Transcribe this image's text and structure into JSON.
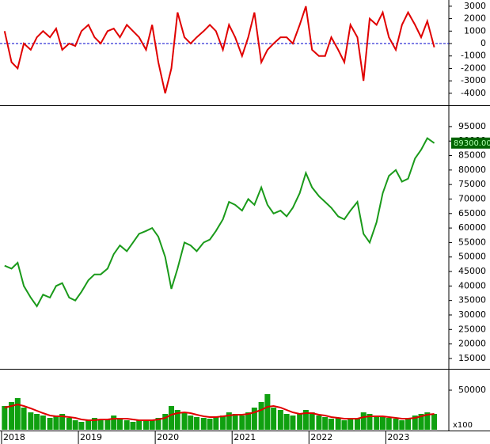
{
  "chart_data": [
    {
      "type": "line",
      "xlim": [
        2017.98,
        2023.82
      ],
      "ylim": [
        -4900,
        3500
      ],
      "yticks": [
        -4000,
        -3000,
        -2000,
        -1000,
        0,
        1000,
        2000,
        3000
      ],
      "hline": 0,
      "hline_color": "#0000cc",
      "x": [
        2018.04,
        2018.13,
        2018.21,
        2018.29,
        2018.38,
        2018.46,
        2018.54,
        2018.63,
        2018.71,
        2018.79,
        2018.88,
        2018.96,
        2019.04,
        2019.13,
        2019.21,
        2019.29,
        2019.38,
        2019.46,
        2019.54,
        2019.63,
        2019.71,
        2019.79,
        2019.88,
        2019.96,
        2020.04,
        2020.13,
        2020.21,
        2020.29,
        2020.38,
        2020.46,
        2020.54,
        2020.63,
        2020.71,
        2020.79,
        2020.88,
        2020.96,
        2021.04,
        2021.13,
        2021.21,
        2021.29,
        2021.38,
        2021.46,
        2021.54,
        2021.63,
        2021.71,
        2021.79,
        2021.88,
        2021.96,
        2022.04,
        2022.13,
        2022.21,
        2022.29,
        2022.38,
        2022.46,
        2022.54,
        2022.63,
        2022.71,
        2022.79,
        2022.88,
        2022.96,
        2023.04,
        2023.13,
        2023.21,
        2023.29,
        2023.38,
        2023.46,
        2023.54,
        2023.63
      ],
      "series": [
        {
          "color": "#e00000",
          "values": [
            1000,
            -1500,
            -2000,
            0,
            -500,
            500,
            1000,
            500,
            1200,
            -500,
            0,
            -200,
            1000,
            1500,
            500,
            0,
            1000,
            1200,
            500,
            1500,
            1000,
            500,
            -500,
            1500,
            -1500,
            -4000,
            -2000,
            2500,
            500,
            0,
            500,
            1000,
            1500,
            1000,
            -500,
            1500,
            500,
            -1000,
            500,
            2500,
            -1500,
            -500,
            0,
            500,
            500,
            0,
            1500,
            3000,
            -500,
            -1000,
            -1000,
            500,
            -500,
            -1500,
            1500,
            500,
            -3000,
            2000,
            1500,
            2500,
            500,
            -500,
            1500,
            2500,
            1500,
            500,
            1800,
            -300
          ]
        }
      ]
    },
    {
      "type": "line",
      "xlim": [
        2017.98,
        2023.82
      ],
      "ylim": [
        11700,
        101800
      ],
      "yticks": [
        15000,
        20000,
        25000,
        30000,
        35000,
        40000,
        45000,
        50000,
        55000,
        60000,
        65000,
        70000,
        75000,
        80000,
        85000,
        90000,
        95000
      ],
      "last_price": {
        "value": 89300,
        "label": "89300.00"
      },
      "x": [
        2018.04,
        2018.13,
        2018.21,
        2018.29,
        2018.38,
        2018.46,
        2018.54,
        2018.63,
        2018.71,
        2018.79,
        2018.88,
        2018.96,
        2019.04,
        2019.13,
        2019.21,
        2019.29,
        2019.38,
        2019.46,
        2019.54,
        2019.63,
        2019.71,
        2019.79,
        2019.88,
        2019.96,
        2020.04,
        2020.13,
        2020.21,
        2020.29,
        2020.38,
        2020.46,
        2020.54,
        2020.63,
        2020.71,
        2020.79,
        2020.88,
        2020.96,
        2021.04,
        2021.13,
        2021.21,
        2021.29,
        2021.38,
        2021.46,
        2021.54,
        2021.63,
        2021.71,
        2021.79,
        2021.88,
        2021.96,
        2022.04,
        2022.13,
        2022.21,
        2022.29,
        2022.38,
        2022.46,
        2022.54,
        2022.63,
        2022.71,
        2022.79,
        2022.88,
        2022.96,
        2023.04,
        2023.13,
        2023.21,
        2023.29,
        2023.38,
        2023.46,
        2023.54,
        2023.63
      ],
      "series": [
        {
          "color": "#1a9a1a",
          "values": [
            47000,
            46000,
            48000,
            40000,
            36000,
            33000,
            37000,
            36000,
            40000,
            41000,
            36000,
            35000,
            38000,
            42000,
            44000,
            44000,
            46000,
            51000,
            54000,
            52000,
            55000,
            58000,
            59000,
            60000,
            57000,
            50000,
            39000,
            46000,
            55000,
            54000,
            52000,
            55000,
            56000,
            59000,
            63000,
            69000,
            68000,
            66000,
            70000,
            68000,
            74000,
            68000,
            65000,
            66000,
            64000,
            67000,
            72000,
            79000,
            74000,
            71000,
            69000,
            67000,
            64000,
            63000,
            66000,
            69000,
            58000,
            55000,
            62000,
            72000,
            78000,
            80000,
            76000,
            77000,
            84000,
            87000,
            91000,
            89300
          ]
        }
      ]
    },
    {
      "type": "bar",
      "xlim": [
        2017.98,
        2023.82
      ],
      "ylim": [
        0,
        76000
      ],
      "yticks": [
        50000
      ],
      "unit_label": "x100",
      "xticks": [
        2018,
        2019,
        2020,
        2021,
        2022,
        2023
      ],
      "x": [
        2018.04,
        2018.13,
        2018.21,
        2018.29,
        2018.38,
        2018.46,
        2018.54,
        2018.63,
        2018.71,
        2018.79,
        2018.88,
        2018.96,
        2019.04,
        2019.13,
        2019.21,
        2019.29,
        2019.38,
        2019.46,
        2019.54,
        2019.63,
        2019.71,
        2019.79,
        2019.88,
        2019.96,
        2020.04,
        2020.13,
        2020.21,
        2020.29,
        2020.38,
        2020.46,
        2020.54,
        2020.63,
        2020.71,
        2020.79,
        2020.88,
        2020.96,
        2021.04,
        2021.13,
        2021.21,
        2021.29,
        2021.38,
        2021.46,
        2021.54,
        2021.63,
        2021.71,
        2021.79,
        2021.88,
        2021.96,
        2022.04,
        2022.13,
        2022.21,
        2022.29,
        2022.38,
        2022.46,
        2022.54,
        2022.63,
        2022.71,
        2022.79,
        2022.88,
        2022.96,
        2023.04,
        2023.13,
        2023.21,
        2023.29,
        2023.38,
        2023.46,
        2023.54,
        2023.63
      ],
      "series": [
        {
          "type": "bar",
          "color": "#10a010",
          "values": [
            30000,
            35000,
            40000,
            28000,
            22000,
            20000,
            18000,
            15000,
            18000,
            20000,
            15000,
            12000,
            10000,
            12000,
            15000,
            12000,
            14000,
            18000,
            15000,
            12000,
            10000,
            12000,
            11000,
            12000,
            15000,
            20000,
            30000,
            25000,
            22000,
            18000,
            16000,
            15000,
            14000,
            16000,
            18000,
            22000,
            20000,
            18000,
            22000,
            28000,
            35000,
            45000,
            28000,
            25000,
            20000,
            18000,
            20000,
            25000,
            22000,
            18000,
            16000,
            14000,
            15000,
            12000,
            14000,
            15000,
            22000,
            20000,
            18000,
            16000,
            15000,
            14000,
            12000,
            14000,
            18000,
            20000,
            22000,
            20000
          ]
        },
        {
          "type": "line",
          "color": "#e00000",
          "values": [
            28000,
            30000,
            32000,
            30000,
            27000,
            24000,
            21000,
            18000,
            17000,
            17000,
            16000,
            15000,
            13000,
            12000,
            12000,
            13000,
            13000,
            14000,
            14000,
            14000,
            13000,
            12000,
            12000,
            12000,
            13000,
            15000,
            19000,
            21000,
            22000,
            21000,
            19000,
            17000,
            16000,
            16000,
            17000,
            18000,
            19000,
            19000,
            20000,
            22000,
            25000,
            29000,
            30000,
            28000,
            25000,
            22000,
            20000,
            21000,
            21000,
            19000,
            18000,
            16000,
            15000,
            14000,
            14000,
            14000,
            16000,
            17000,
            17000,
            17000,
            16000,
            15000,
            14000,
            14000,
            15000,
            17000,
            19000,
            20000
          ]
        }
      ]
    }
  ]
}
